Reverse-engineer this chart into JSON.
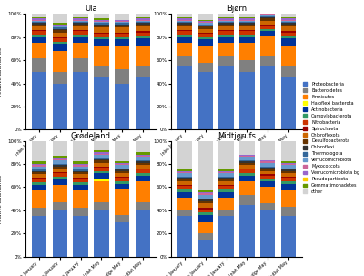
{
  "subplots": [
    "Ula",
    "Bjørn",
    "Grødeland",
    "Midtjørufs"
  ],
  "x_labels": [
    "Inlet January",
    "Sludge January",
    "Outlet January",
    "Inlet May",
    "Sludge May",
    "Outlet May"
  ],
  "legend_labels": [
    "Proteobacteria",
    "Bacteroidetes",
    "Firmicutes",
    "Haloflexi bacterota",
    "Actinobacteria",
    "Campylobacterota",
    "Nitrobacteria",
    "Spirochaeta",
    "Chloroflexota",
    "Desulfobacterota",
    "Chloroflexi",
    "Thermologota",
    "Verrucomicrobiota",
    "Myxococcota",
    "Verrucomicrobiota bg",
    "Pseudopartinota",
    "Gemmatimonadetes",
    "other"
  ],
  "legend_colors": [
    "#4472c4",
    "#808080",
    "#ff7f00",
    "#ffff00",
    "#003399",
    "#339966",
    "#cc3300",
    "#990000",
    "#cc6600",
    "#663300",
    "#333333",
    "#336699",
    "#6699cc",
    "#cc6699",
    "#9966cc",
    "#ffcc00",
    "#669900",
    "#d3d3d3"
  ],
  "data": {
    "Ula": [
      [
        0.5,
        0.4,
        0.5,
        0.45,
        0.4,
        0.45
      ],
      [
        0.12,
        0.1,
        0.12,
        0.1,
        0.12,
        0.1
      ],
      [
        0.13,
        0.18,
        0.13,
        0.17,
        0.21,
        0.18
      ],
      [
        0.0,
        0.0,
        0.0,
        0.0,
        0.0,
        0.0
      ],
      [
        0.05,
        0.06,
        0.05,
        0.06,
        0.05,
        0.06
      ],
      [
        0.02,
        0.02,
        0.02,
        0.02,
        0.02,
        0.02
      ],
      [
        0.03,
        0.03,
        0.03,
        0.03,
        0.03,
        0.03
      ],
      [
        0.01,
        0.01,
        0.01,
        0.01,
        0.01,
        0.01
      ],
      [
        0.03,
        0.04,
        0.03,
        0.04,
        0.04,
        0.04
      ],
      [
        0.02,
        0.02,
        0.02,
        0.02,
        0.02,
        0.02
      ],
      [
        0.01,
        0.01,
        0.01,
        0.01,
        0.01,
        0.01
      ],
      [
        0.01,
        0.01,
        0.01,
        0.01,
        0.01,
        0.01
      ],
      [
        0.01,
        0.01,
        0.01,
        0.01,
        0.01,
        0.01
      ],
      [
        0.01,
        0.01,
        0.01,
        0.01,
        0.01,
        0.01
      ],
      [
        0.01,
        0.01,
        0.01,
        0.01,
        0.01,
        0.01
      ],
      [
        0.0,
        0.0,
        0.0,
        0.0,
        0.0,
        0.0
      ],
      [
        0.01,
        0.01,
        0.01,
        0.01,
        0.0,
        0.01
      ],
      [
        0.03,
        0.08,
        0.03,
        0.05,
        0.07,
        0.04
      ]
    ],
    "Bjørn": [
      [
        0.55,
        0.5,
        0.55,
        0.5,
        0.55,
        0.45
      ],
      [
        0.08,
        0.08,
        0.08,
        0.1,
        0.08,
        0.1
      ],
      [
        0.12,
        0.14,
        0.12,
        0.15,
        0.18,
        0.18
      ],
      [
        0.0,
        0.0,
        0.0,
        0.0,
        0.0,
        0.0
      ],
      [
        0.05,
        0.06,
        0.05,
        0.05,
        0.04,
        0.06
      ],
      [
        0.02,
        0.02,
        0.02,
        0.02,
        0.02,
        0.02
      ],
      [
        0.03,
        0.03,
        0.03,
        0.03,
        0.03,
        0.03
      ],
      [
        0.01,
        0.01,
        0.01,
        0.01,
        0.01,
        0.01
      ],
      [
        0.03,
        0.03,
        0.03,
        0.03,
        0.03,
        0.04
      ],
      [
        0.02,
        0.02,
        0.02,
        0.02,
        0.02,
        0.02
      ],
      [
        0.01,
        0.01,
        0.01,
        0.01,
        0.01,
        0.01
      ],
      [
        0.01,
        0.01,
        0.01,
        0.01,
        0.01,
        0.01
      ],
      [
        0.01,
        0.01,
        0.01,
        0.01,
        0.01,
        0.01
      ],
      [
        0.01,
        0.01,
        0.01,
        0.01,
        0.01,
        0.01
      ],
      [
        0.01,
        0.01,
        0.01,
        0.01,
        0.01,
        0.01
      ],
      [
        0.0,
        0.0,
        0.0,
        0.0,
        0.0,
        0.0
      ],
      [
        0.01,
        0.01,
        0.01,
        0.01,
        0.0,
        0.01
      ],
      [
        0.03,
        0.06,
        0.03,
        0.04,
        0.0,
        0.03
      ]
    ],
    "Grødeland": [
      [
        0.35,
        0.4,
        0.35,
        0.4,
        0.3,
        0.4
      ],
      [
        0.07,
        0.07,
        0.07,
        0.07,
        0.06,
        0.07
      ],
      [
        0.15,
        0.15,
        0.15,
        0.18,
        0.22,
        0.18
      ],
      [
        0.0,
        0.0,
        0.0,
        0.02,
        0.0,
        0.0
      ],
      [
        0.05,
        0.05,
        0.05,
        0.05,
        0.05,
        0.05
      ],
      [
        0.02,
        0.02,
        0.02,
        0.02,
        0.02,
        0.02
      ],
      [
        0.03,
        0.03,
        0.03,
        0.03,
        0.03,
        0.03
      ],
      [
        0.01,
        0.01,
        0.01,
        0.01,
        0.01,
        0.01
      ],
      [
        0.03,
        0.03,
        0.03,
        0.03,
        0.03,
        0.03
      ],
      [
        0.02,
        0.02,
        0.02,
        0.02,
        0.02,
        0.02
      ],
      [
        0.01,
        0.01,
        0.01,
        0.01,
        0.01,
        0.01
      ],
      [
        0.01,
        0.01,
        0.01,
        0.01,
        0.01,
        0.01
      ],
      [
        0.03,
        0.03,
        0.03,
        0.03,
        0.03,
        0.03
      ],
      [
        0.01,
        0.01,
        0.01,
        0.01,
        0.01,
        0.01
      ],
      [
        0.01,
        0.01,
        0.01,
        0.01,
        0.01,
        0.01
      ],
      [
        0.0,
        0.0,
        0.0,
        0.0,
        0.0,
        0.0
      ],
      [
        0.02,
        0.02,
        0.02,
        0.02,
        0.01,
        0.02
      ],
      [
        0.18,
        0.13,
        0.18,
        0.09,
        0.19,
        0.1
      ]
    ],
    "Midtjørufs": [
      [
        0.35,
        0.15,
        0.35,
        0.45,
        0.4,
        0.35
      ],
      [
        0.06,
        0.05,
        0.06,
        0.08,
        0.06,
        0.08
      ],
      [
        0.1,
        0.1,
        0.1,
        0.12,
        0.14,
        0.14
      ],
      [
        0.0,
        0.0,
        0.0,
        0.0,
        0.0,
        0.0
      ],
      [
        0.05,
        0.06,
        0.05,
        0.05,
        0.05,
        0.06
      ],
      [
        0.02,
        0.02,
        0.02,
        0.02,
        0.02,
        0.02
      ],
      [
        0.03,
        0.03,
        0.03,
        0.03,
        0.03,
        0.03
      ],
      [
        0.01,
        0.01,
        0.01,
        0.01,
        0.01,
        0.01
      ],
      [
        0.03,
        0.04,
        0.03,
        0.03,
        0.03,
        0.03
      ],
      [
        0.02,
        0.02,
        0.02,
        0.02,
        0.02,
        0.02
      ],
      [
        0.01,
        0.01,
        0.01,
        0.01,
        0.01,
        0.01
      ],
      [
        0.01,
        0.01,
        0.01,
        0.01,
        0.01,
        0.01
      ],
      [
        0.03,
        0.03,
        0.03,
        0.03,
        0.03,
        0.03
      ],
      [
        0.01,
        0.02,
        0.01,
        0.01,
        0.01,
        0.01
      ],
      [
        0.01,
        0.01,
        0.01,
        0.01,
        0.01,
        0.01
      ],
      [
        0.0,
        0.0,
        0.0,
        0.0,
        0.0,
        0.0
      ],
      [
        0.01,
        0.01,
        0.01,
        0.0,
        0.0,
        0.01
      ],
      [
        0.25,
        0.43,
        0.25,
        0.12,
        0.17,
        0.18
      ]
    ]
  }
}
